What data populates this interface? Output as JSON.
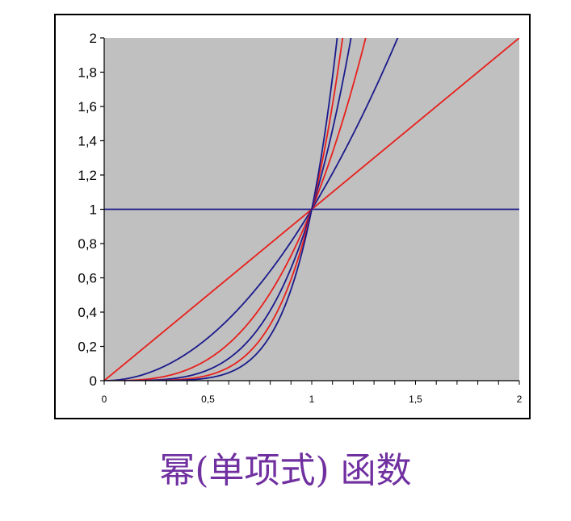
{
  "caption": "幂(单项式) 函数",
  "colors": {
    "plot_background": "#c0c0c0",
    "frame": "#000000",
    "blue_series": "#1a1a8c",
    "red_series": "#e8201c",
    "caption": "#7030a0"
  },
  "chart_data": {
    "type": "line",
    "title": "",
    "xlabel": "",
    "ylabel": "",
    "xlim": [
      0,
      2
    ],
    "ylim": [
      0,
      2
    ],
    "grid": false,
    "legend": "none",
    "x_ticks": [
      "0",
      "0,5",
      "1",
      "1,5",
      "2"
    ],
    "x_tick_values": [
      0,
      0.5,
      1,
      1.5,
      2
    ],
    "y_ticks": [
      "0",
      "0,2",
      "0,4",
      "0,6",
      "0,8",
      "1",
      "1,2",
      "1,4",
      "1,6",
      "1,8",
      "2"
    ],
    "y_tick_values": [
      0,
      0.2,
      0.4,
      0.6,
      0.8,
      1,
      1.2,
      1.4,
      1.6,
      1.8,
      2
    ],
    "series": [
      {
        "function": "y = x^0",
        "exponent": 0,
        "color": "#1a1a8c"
      },
      {
        "function": "y = x^1",
        "exponent": 1,
        "color": "#e8201c"
      },
      {
        "function": "y = x^2",
        "exponent": 2,
        "color": "#1a1a8c"
      },
      {
        "function": "y = x^3",
        "exponent": 3,
        "color": "#e8201c"
      },
      {
        "function": "y = x^4",
        "exponent": 4,
        "color": "#1a1a8c"
      },
      {
        "function": "y = x^5",
        "exponent": 5,
        "color": "#e8201c"
      },
      {
        "function": "y = x^6",
        "exponent": 6,
        "color": "#1a1a8c"
      }
    ]
  }
}
